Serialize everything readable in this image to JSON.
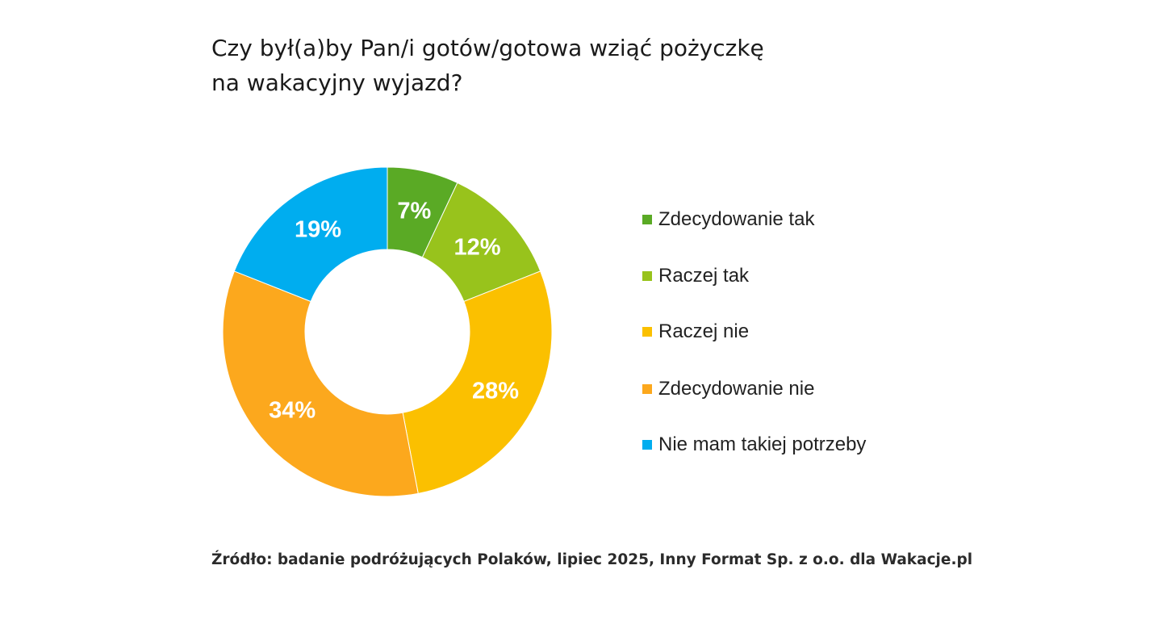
{
  "title": {
    "line1": "Czy był(a)by Pan/i gotów/gotowa wziąć pożyczkę",
    "line2": "na wakacyjny wyjazd?"
  },
  "chart_data": {
    "type": "pie",
    "donut": true,
    "title": "Czy był(a)by Pan/i gotów/gotowa wziąć pożyczkę na wakacyjny wyjazd?",
    "legend_position": "right",
    "unit": "%",
    "categories": [
      "Zdecydowanie tak",
      "Raczej tak",
      "Raczej nie",
      "Zdecydowanie nie",
      "Nie mam takiej potrzeby"
    ],
    "values": [
      7,
      12,
      28,
      34,
      19
    ],
    "labels": [
      "7%",
      "12%",
      "28%",
      "34%",
      "19%"
    ],
    "colors": [
      "#5aaa25",
      "#98c31c",
      "#fbc000",
      "#fca81d",
      "#00adef"
    ]
  },
  "legend": {
    "items": [
      {
        "label": "Zdecydowanie tak",
        "color": "#5aaa25"
      },
      {
        "label": "Raczej tak",
        "color": "#98c31c"
      },
      {
        "label": "Raczej nie",
        "color": "#fbc000"
      },
      {
        "label": "Zdecydowanie nie",
        "color": "#fca81d"
      },
      {
        "label": "Nie mam takiej potrzeby",
        "color": "#00adef"
      }
    ]
  },
  "source": "Źródło: badanie podróżujących Polaków, lipiec 2025, Inny Format Sp. z o.o. dla Wakacje.pl"
}
